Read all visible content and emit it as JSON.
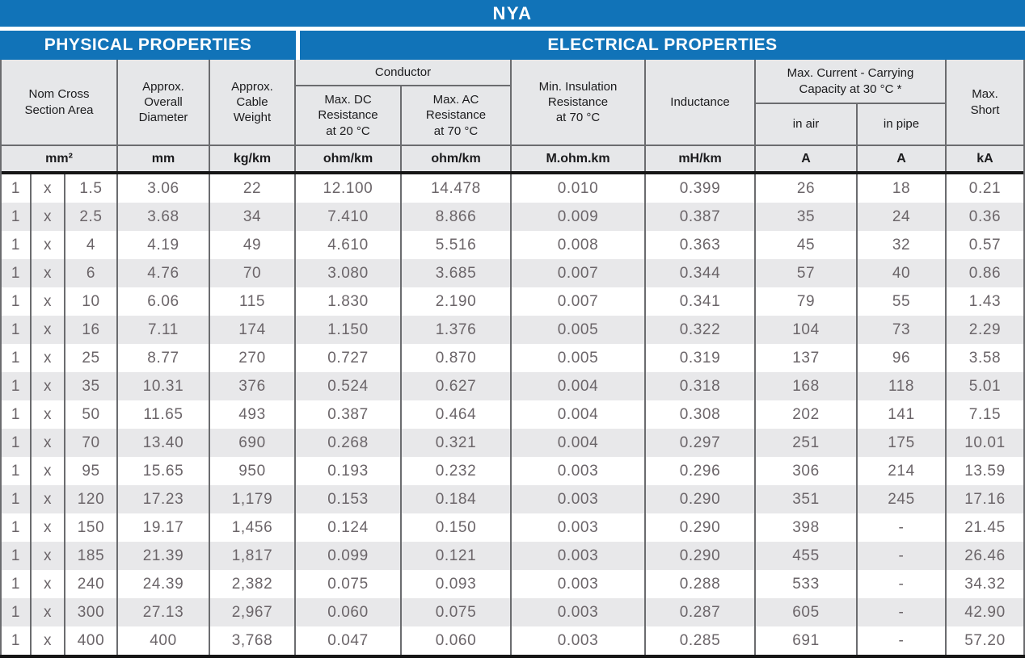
{
  "title": "NYA",
  "sections": {
    "physical": "PHYSICAL PROPERTIES",
    "electrical": "ELECTRICAL PROPERTIES"
  },
  "header": {
    "nom_cross": "Nom Cross\nSection Area",
    "overall_diameter": "Approx.\nOverall\nDiameter",
    "cable_weight": "Approx.\nCable\nWeight",
    "conductor": "Conductor",
    "dc_resistance": "Max. DC\nResistance\nat 20 °C",
    "ac_resistance": "Max. AC\nResistance\nat 70 °C",
    "insulation": "Min. Insulation\nResistance\nat 70 °C",
    "inductance": "Inductance",
    "max_current": "Max. Current - Carrying\nCapacity at 30 °C *",
    "in_air": "in air",
    "in_pipe": "in pipe",
    "max_short": "Max.\nShort"
  },
  "table": {
    "units": [
      "mm²",
      "mm",
      "kg/km",
      "ohm/km",
      "ohm/km",
      "M.ohm.km",
      "mH/km",
      "A",
      "A",
      "kA"
    ],
    "rows": [
      [
        "1",
        "x",
        "1.5",
        "3.06",
        "22",
        "12.100",
        "14.478",
        "0.010",
        "0.399",
        "26",
        "18",
        "0.21"
      ],
      [
        "1",
        "x",
        "2.5",
        "3.68",
        "34",
        "7.410",
        "8.866",
        "0.009",
        "0.387",
        "35",
        "24",
        "0.36"
      ],
      [
        "1",
        "x",
        "4",
        "4.19",
        "49",
        "4.610",
        "5.516",
        "0.008",
        "0.363",
        "45",
        "32",
        "0.57"
      ],
      [
        "1",
        "x",
        "6",
        "4.76",
        "70",
        "3.080",
        "3.685",
        "0.007",
        "0.344",
        "57",
        "40",
        "0.86"
      ],
      [
        "1",
        "x",
        "10",
        "6.06",
        "115",
        "1.830",
        "2.190",
        "0.007",
        "0.341",
        "79",
        "55",
        "1.43"
      ],
      [
        "1",
        "x",
        "16",
        "7.11",
        "174",
        "1.150",
        "1.376",
        "0.005",
        "0.322",
        "104",
        "73",
        "2.29"
      ],
      [
        "1",
        "x",
        "25",
        "8.77",
        "270",
        "0.727",
        "0.870",
        "0.005",
        "0.319",
        "137",
        "96",
        "3.58"
      ],
      [
        "1",
        "x",
        "35",
        "10.31",
        "376",
        "0.524",
        "0.627",
        "0.004",
        "0.318",
        "168",
        "118",
        "5.01"
      ],
      [
        "1",
        "x",
        "50",
        "11.65",
        "493",
        "0.387",
        "0.464",
        "0.004",
        "0.308",
        "202",
        "141",
        "7.15"
      ],
      [
        "1",
        "x",
        "70",
        "13.40",
        "690",
        "0.268",
        "0.321",
        "0.004",
        "0.297",
        "251",
        "175",
        "10.01"
      ],
      [
        "1",
        "x",
        "95",
        "15.65",
        "950",
        "0.193",
        "0.232",
        "0.003",
        "0.296",
        "306",
        "214",
        "13.59"
      ],
      [
        "1",
        "x",
        "120",
        "17.23",
        "1,179",
        "0.153",
        "0.184",
        "0.003",
        "0.290",
        "351",
        "245",
        "17.16"
      ],
      [
        "1",
        "x",
        "150",
        "19.17",
        "1,456",
        "0.124",
        "0.150",
        "0.003",
        "0.290",
        "398",
        "-",
        "21.45"
      ],
      [
        "1",
        "x",
        "185",
        "21.39",
        "1,817",
        "0.099",
        "0.121",
        "0.003",
        "0.290",
        "455",
        "-",
        "26.46"
      ],
      [
        "1",
        "x",
        "240",
        "24.39",
        "2,382",
        "0.075",
        "0.093",
        "0.003",
        "0.288",
        "533",
        "-",
        "34.32"
      ],
      [
        "1",
        "x",
        "300",
        "27.13",
        "2,967",
        "0.060",
        "0.075",
        "0.003",
        "0.287",
        "605",
        "-",
        "42.90"
      ],
      [
        "1",
        "x",
        "400",
        "400",
        "3,768",
        "0.047",
        "0.060",
        "0.003",
        "0.285",
        "691",
        "-",
        "57.20"
      ]
    ]
  },
  "colors": {
    "accent_blue": "#1173b8",
    "header_background": "#e6e7e9",
    "row_alternate": "#e8e8ea",
    "grid_line": "#6b6c6f",
    "data_text": "#6b6569"
  }
}
